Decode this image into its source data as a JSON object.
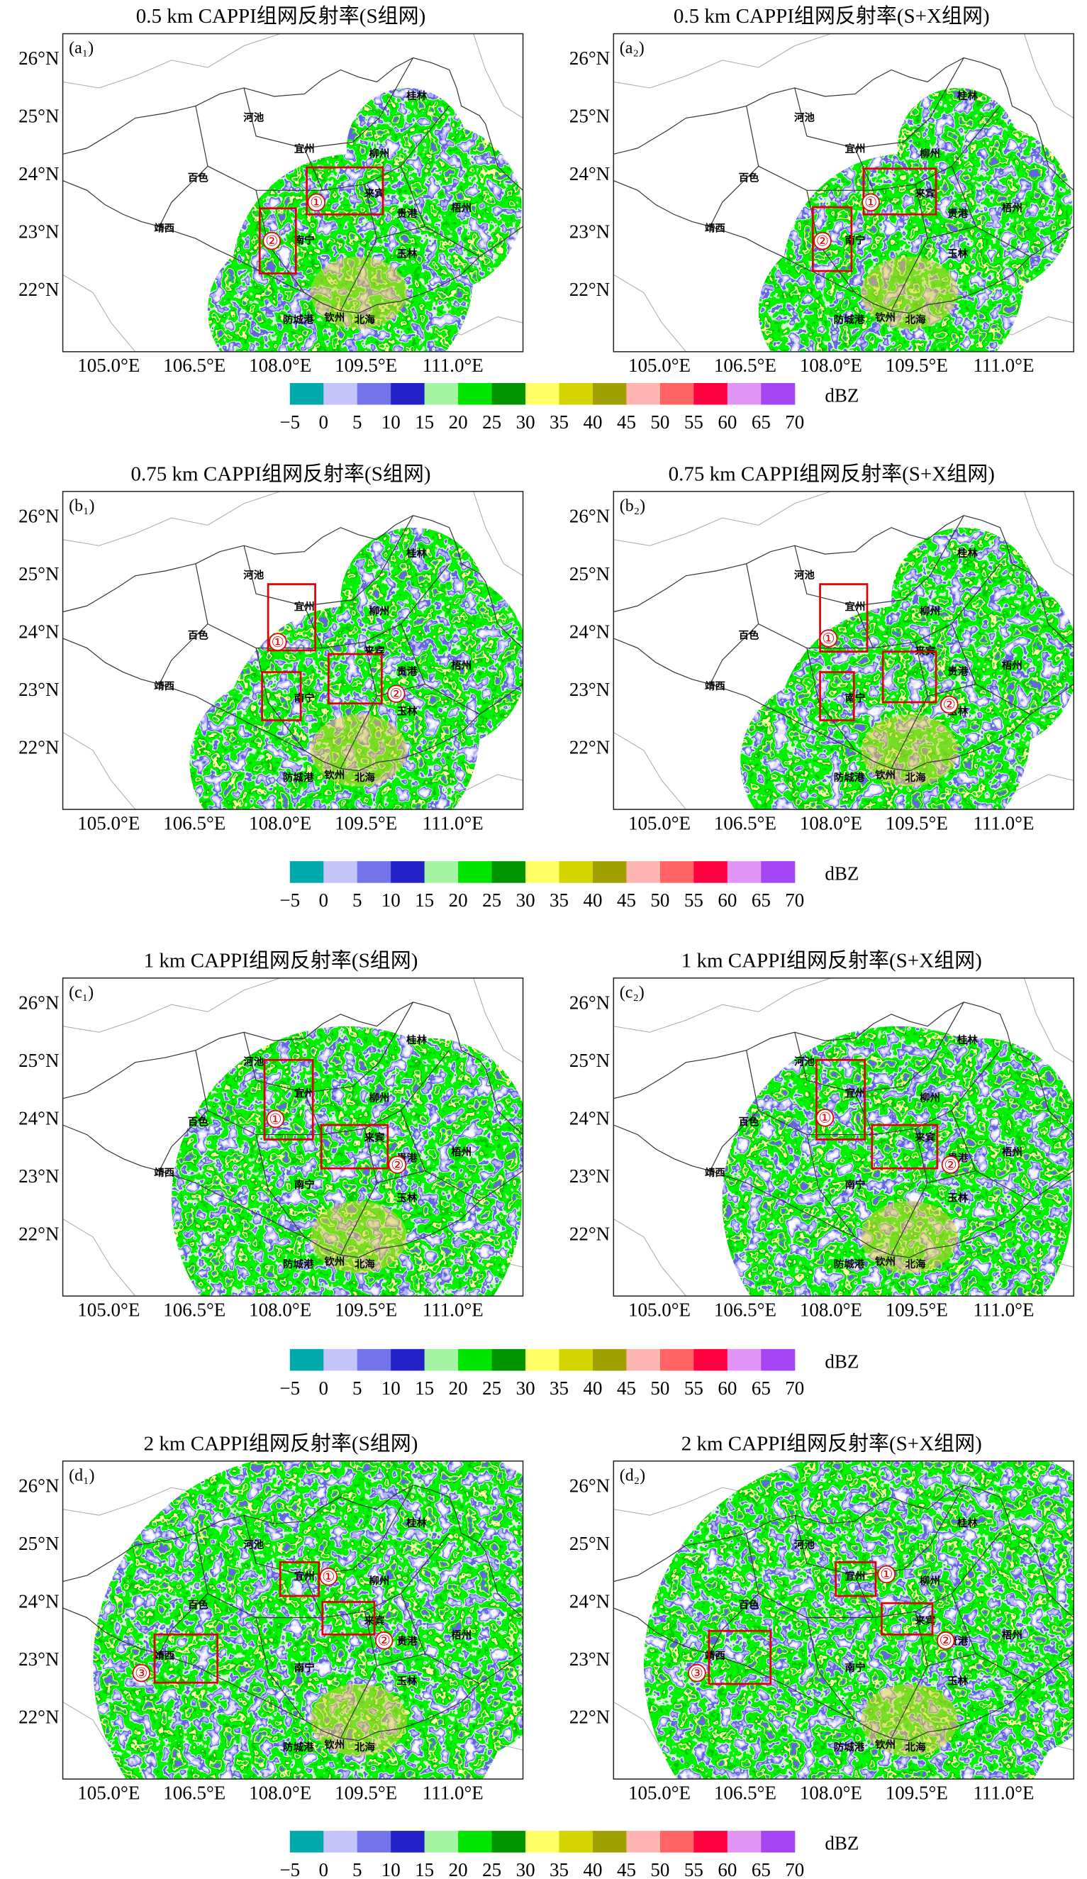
{
  "panels": [
    {
      "title": "0.5 km CAPPI组网反射率(S组网)",
      "label": "(a₁)",
      "markers": [
        "①",
        "②"
      ]
    },
    {
      "title": "0.5 km CAPPI组网反射率(S+X组网)",
      "label": "(a₂)",
      "markers": [
        "①",
        "②"
      ]
    },
    {
      "title": "0.75 km CAPPI组网反射率(S组网)",
      "label": "(b₁)",
      "markers": [
        "①",
        "②"
      ]
    },
    {
      "title": "0.75 km CAPPI组网反射率(S+X组网)",
      "label": "(b₂)",
      "markers": [
        "①",
        "②"
      ]
    },
    {
      "title": "1 km CAPPI组网反射率(S组网)",
      "label": "(c₁)",
      "markers": [
        "①",
        "②"
      ]
    },
    {
      "title": "1 km CAPPI组网反射率(S+X组网)",
      "label": "(c₂)",
      "markers": [
        "①",
        "②"
      ]
    },
    {
      "title": "2 km CAPPI组网反射率(S组网)",
      "label": "(d₁)",
      "markers": [
        "①",
        "②",
        "③"
      ]
    },
    {
      "title": "2 km CAPPI组网反射率(S+X组网)",
      "label": "(d₂)",
      "markers": [
        "①",
        "②",
        "③"
      ]
    }
  ],
  "xticks": [
    "105.0°E",
    "106.5°E",
    "108.0°E",
    "109.5°E",
    "111.0°E"
  ],
  "yticks": [
    "26°N",
    "25°N",
    "24°N",
    "23°N",
    "22°N"
  ],
  "cities": [
    "河池",
    "桂林",
    "宜州",
    "柳州",
    "百色",
    "来宾",
    "梧州",
    "靖西",
    "贵港",
    "南宁",
    "玉林",
    "钦州",
    "北海",
    "防城港"
  ],
  "colorbar": {
    "unit": "dBZ",
    "labels": [
      "−5",
      "0",
      "5",
      "10",
      "15",
      "20",
      "25",
      "30",
      "35",
      "40",
      "45",
      "50",
      "55",
      "60",
      "65",
      "70"
    ],
    "colors": [
      "#00aaaa",
      "#c4c4f8",
      "#7474ea",
      "#2222c8",
      "#a4f4a4",
      "#00e400",
      "#009400",
      "#ffff66",
      "#d4d400",
      "#a0a000",
      "#ffb4b4",
      "#ff6464",
      "#ff0040",
      "#e094f4",
      "#a444f4"
    ]
  }
}
